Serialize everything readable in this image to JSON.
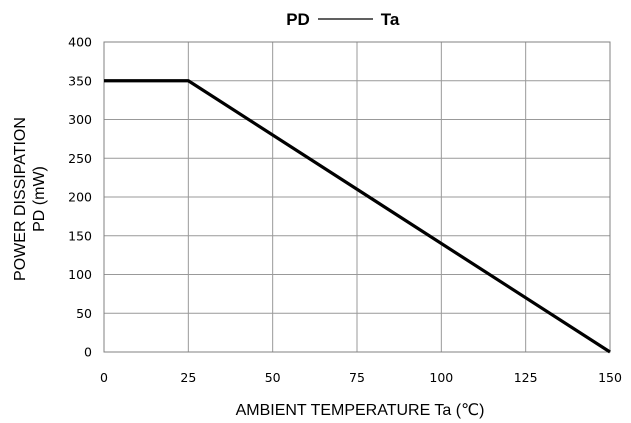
{
  "chart_data": {
    "type": "line",
    "title_left": "PD",
    "title_right": "Ta",
    "xlabel": "AMBIENT TEMPERATURE Ta (℃)",
    "ylabel_line1": "POWER DISSIPATION",
    "ylabel_line2": "PD (mW)",
    "xlim": [
      0,
      150
    ],
    "ylim": [
      0,
      400
    ],
    "x_ticks": [
      0,
      25,
      50,
      75,
      100,
      125,
      150
    ],
    "y_ticks": [
      0,
      50,
      100,
      150,
      200,
      250,
      300,
      350,
      400
    ],
    "grid": true,
    "series": [
      {
        "x": [
          0,
          25,
          150
        ],
        "y": [
          350,
          350,
          0
        ]
      }
    ],
    "colors": {
      "line": "#000000",
      "grid": "#999999"
    }
  }
}
